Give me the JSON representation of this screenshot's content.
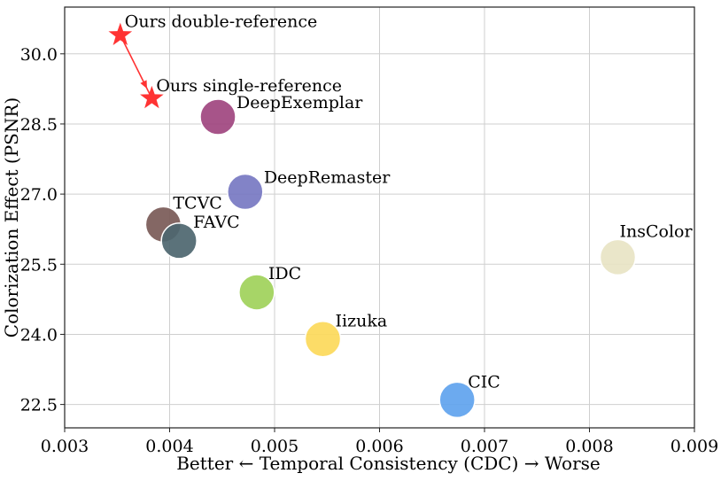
{
  "chart_data": {
    "type": "scatter",
    "title": "",
    "xlabel": "Better ← Temporal Consistency (CDC) → Worse",
    "ylabel": "Colorization Effect (PSNR)",
    "xlim": [
      0.003,
      0.009
    ],
    "ylim": [
      22.0,
      31.0
    ],
    "grid": true,
    "xticks": [
      0.003,
      0.004,
      0.005,
      0.006,
      0.007,
      0.008,
      0.009
    ],
    "xtick_labels": [
      "0.003",
      "0.004",
      "0.005",
      "0.006",
      "0.007",
      "0.008",
      "0.009"
    ],
    "yticks": [
      22.5,
      24.0,
      25.5,
      27.0,
      28.5,
      30.0
    ],
    "ytick_labels": [
      "22.5",
      "24.0",
      "25.5",
      "27.0",
      "28.5",
      "30.0"
    ],
    "points": [
      {
        "name": "Ours double-reference",
        "x": 0.00353,
        "y": 30.4,
        "color": "#ff3333",
        "marker": "star"
      },
      {
        "name": "Ours single-reference",
        "x": 0.00383,
        "y": 29.05,
        "color": "#ff3333",
        "marker": "star"
      },
      {
        "name": "DeepExemplar",
        "x": 0.00446,
        "y": 28.65,
        "color": "#a0457f",
        "marker": "circle"
      },
      {
        "name": "DeepRemaster",
        "x": 0.00472,
        "y": 27.05,
        "color": "#7778c2",
        "marker": "circle"
      },
      {
        "name": "TCVC",
        "x": 0.00394,
        "y": 26.35,
        "color": "#7a5a57",
        "marker": "circle"
      },
      {
        "name": "FAVC",
        "x": 0.00409,
        "y": 26.0,
        "color": "#4d666f",
        "marker": "circle"
      },
      {
        "name": "InsColor",
        "x": 0.00827,
        "y": 25.65,
        "color": "#e8e4c4",
        "marker": "circle"
      },
      {
        "name": "IDC",
        "x": 0.00483,
        "y": 24.9,
        "color": "#9fd15a",
        "marker": "circle"
      },
      {
        "name": "Iizuka",
        "x": 0.00546,
        "y": 23.9,
        "color": "#fcd95a",
        "marker": "circle"
      },
      {
        "name": "CIC",
        "x": 0.00674,
        "y": 22.6,
        "color": "#5fa3ee",
        "marker": "circle"
      }
    ]
  }
}
